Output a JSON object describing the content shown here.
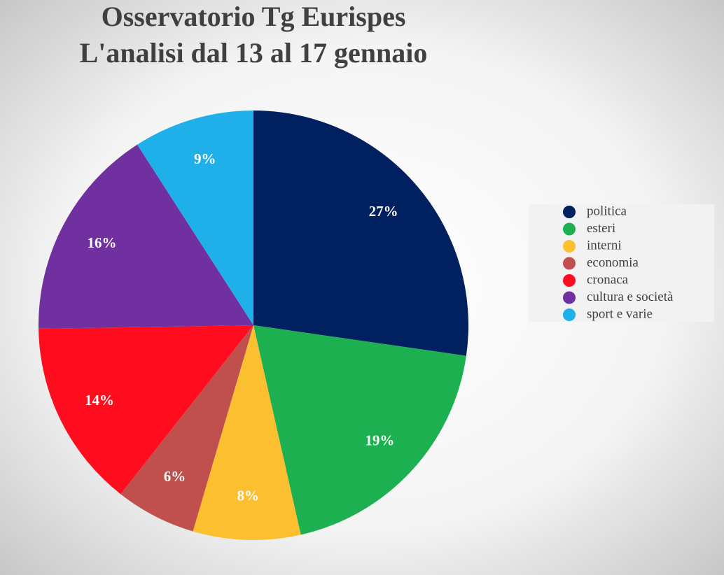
{
  "chart_data": {
    "type": "pie",
    "title": "Osservatorio Tg Eurispes",
    "subtitle": "L'analisi dal 13 al 17 gennaio",
    "categories": [
      "politica",
      "esteri",
      "interni",
      "economia",
      "cronaca",
      "cultura e società",
      "sport e varie"
    ],
    "values": [
      27,
      19,
      8,
      6,
      14,
      16,
      9
    ],
    "value_labels": [
      "27%",
      "19%",
      "8%",
      "6%",
      "14%",
      "16%",
      "9%"
    ],
    "colors": [
      "#002060",
      "#1db050",
      "#fbbf2f",
      "#c0504d",
      "#ff0d1f",
      "#7030a0",
      "#1fb0ea"
    ],
    "legend": "right"
  }
}
